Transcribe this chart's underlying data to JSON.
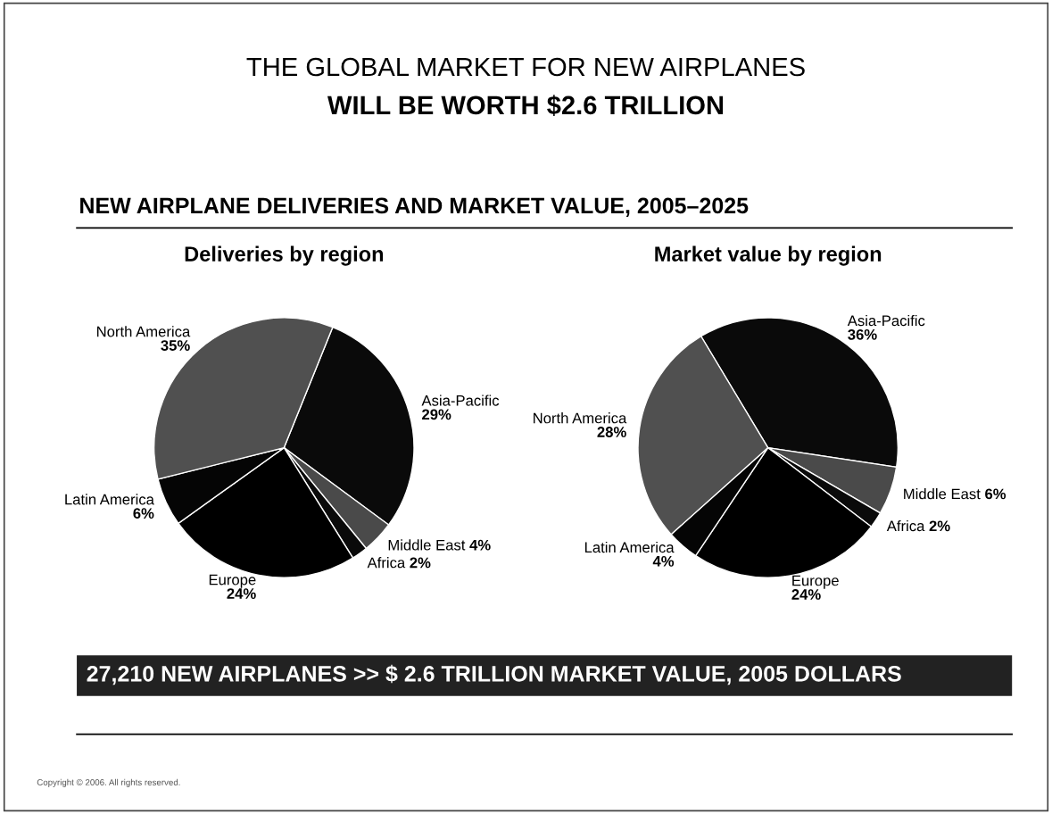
{
  "chart_data": [
    {
      "type": "other",
      "title": "THE GLOBAL MARKET FOR NEW AIRPLANES",
      "subtitle": "WILL BE WORTH $2.6 TRILLION",
      "annotations": [
        "NEW AIRPLANE DELIVERIES AND MARKET VALUE, 2005–2025",
        "27,210 NEW AIRPLANES >> $ 2.6 TRILLION MARKET VALUE, 2005 DOLLARS",
        "Copyright © 2006. All rights reserved."
      ]
    },
    {
      "type": "pie",
      "title": "Deliveries by region",
      "categories": [
        "Asia-Pacific",
        "Middle East",
        "Africa",
        "Europe",
        "Latin America",
        "North America"
      ],
      "values": [
        29,
        4,
        2,
        24,
        6,
        35
      ],
      "value_labels": [
        "29%",
        "4%",
        "2%",
        "24%",
        "6%",
        "35%"
      ],
      "colors": [
        "#0a0a0a",
        "#4a4a4a",
        "#0a0a0a",
        "#000000",
        "#050505",
        "#505050"
      ]
    },
    {
      "type": "pie",
      "title": "Market value by region",
      "categories": [
        "Asia-Pacific",
        "Middle East",
        "Africa",
        "Europe",
        "Latin America",
        "North America"
      ],
      "values": [
        36,
        6,
        2,
        24,
        4,
        28
      ],
      "value_labels": [
        "36%",
        "6%",
        "2%",
        "24%",
        "4%",
        "28%"
      ],
      "colors": [
        "#0a0a0a",
        "#4a4a4a",
        "#0a0a0a",
        "#000000",
        "#050505",
        "#505050"
      ]
    }
  ]
}
